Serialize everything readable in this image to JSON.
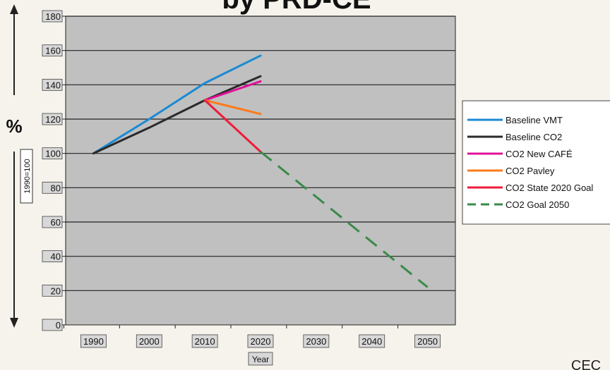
{
  "chart_data": {
    "type": "line",
    "title": "by PRD-CE",
    "xlabel": "Year",
    "ylabel": "%",
    "ylabel_note": "1990=100",
    "x_ticks": [
      "1990",
      "2000",
      "2010",
      "2020",
      "2030",
      "2040",
      "2050"
    ],
    "y_ticks": [
      "0",
      "20",
      "40",
      "60",
      "80",
      "100",
      "120",
      "140",
      "160",
      "180"
    ],
    "xlim": [
      1985,
      2055
    ],
    "ylim": [
      0,
      180
    ],
    "grid": "horizontal",
    "legend_position": "right",
    "plot_background": "#c0c0c0",
    "series": [
      {
        "name": "Baseline VMT",
        "color": "#1a8ad4",
        "dash": "solid",
        "x": [
          1990,
          2000,
          2010,
          2020
        ],
        "y": [
          100,
          120,
          141,
          157
        ]
      },
      {
        "name": "Baseline CO2",
        "color": "#2a2a2a",
        "dash": "solid",
        "x": [
          1990,
          2000,
          2010,
          2020
        ],
        "y": [
          100,
          115,
          131,
          145
        ]
      },
      {
        "name": "CO2 New CAFÉ",
        "color": "#e0109a",
        "dash": "solid",
        "x": [
          2010,
          2020
        ],
        "y": [
          131,
          142
        ]
      },
      {
        "name": "CO2 Pavley",
        "color": "#ff7a1a",
        "dash": "solid",
        "x": [
          2010,
          2020
        ],
        "y": [
          131,
          123
        ]
      },
      {
        "name": "CO2 State 2020 Goal",
        "color": "#ee1c3a",
        "dash": "solid",
        "x": [
          2010,
          2020
        ],
        "y": [
          131,
          101
        ]
      },
      {
        "name": "CO2 Goal 2050",
        "color": "#3a8a4a",
        "dash": "dashed",
        "x": [
          2020,
          2050
        ],
        "y": [
          101,
          22
        ]
      }
    ]
  },
  "footer_text": "CEC"
}
